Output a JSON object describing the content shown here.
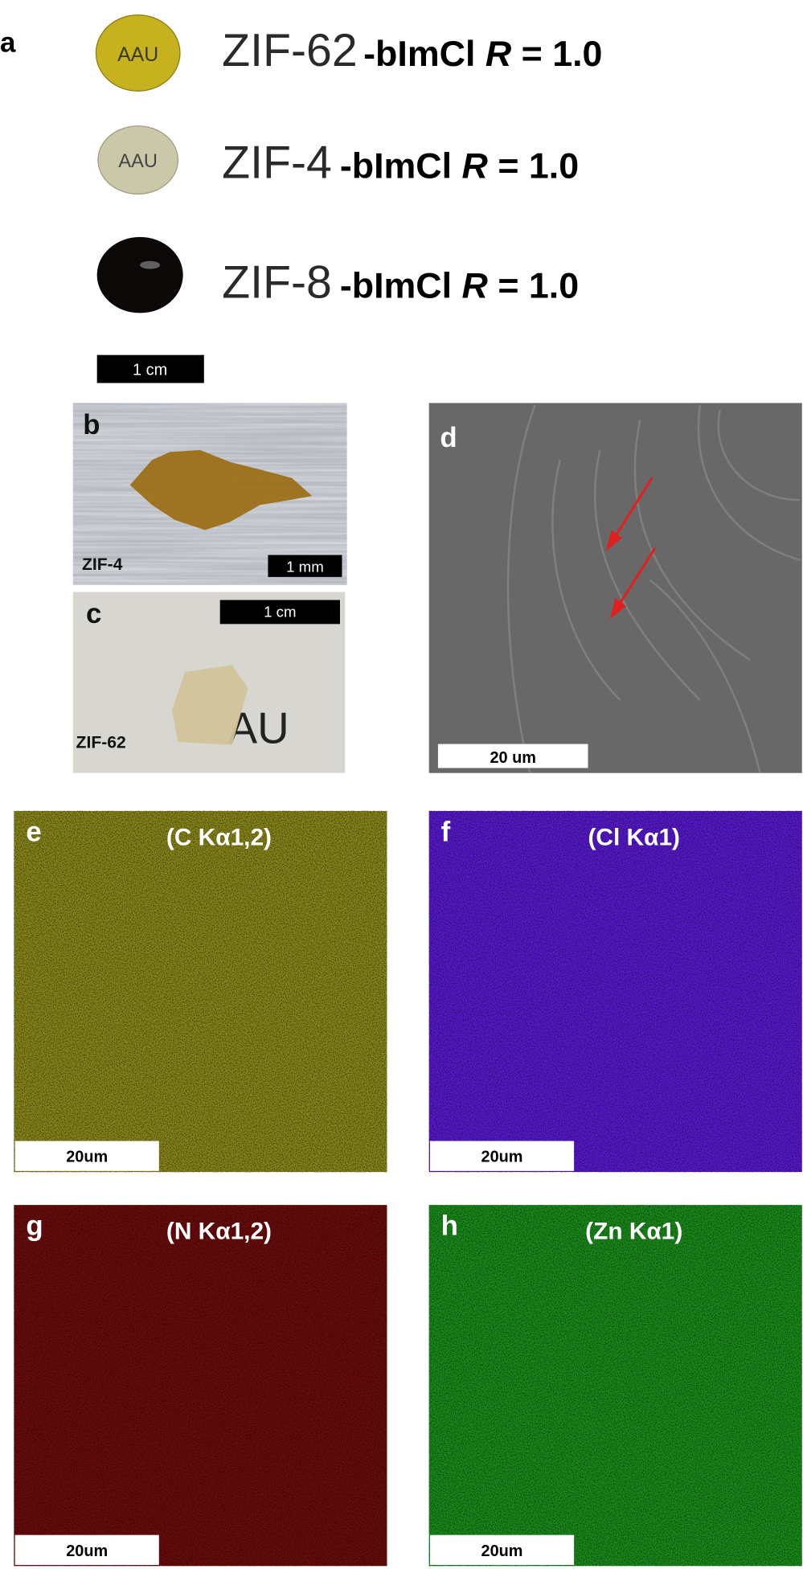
{
  "panel_a": {
    "label": "a",
    "rows": [
      {
        "disc_text": "AAU",
        "material": "ZIF-62",
        "suffix": "-bImCl",
        "symbol": "R",
        "ratio": "= 1.0"
      },
      {
        "disc_text": "AAU",
        "material": "ZIF-4",
        "suffix": "-bImCl",
        "symbol": "R",
        "ratio": "= 1.0"
      },
      {
        "material": "ZIF-8",
        "suffix": "-bImCl",
        "symbol": "R",
        "ratio": "= 1.0"
      }
    ],
    "scale": "1 cm"
  },
  "panel_b": {
    "label": "b",
    "sample": "ZIF-4",
    "scale": "1 mm"
  },
  "panel_c": {
    "label": "c",
    "sample": "ZIF-62",
    "scale": "1 cm",
    "background_text": "AU"
  },
  "panel_d": {
    "label": "d",
    "scale": "20 um"
  },
  "maps": [
    {
      "label": "e",
      "element": "(C Kα1,2)",
      "scale": "20um"
    },
    {
      "label": "f",
      "element": "(Cl Kα1)",
      "scale": "20um"
    },
    {
      "label": "g",
      "element": "(N Kα1,2)",
      "scale": "20um"
    },
    {
      "label": "h",
      "element": "(Zn Kα1)",
      "scale": "20um"
    }
  ]
}
